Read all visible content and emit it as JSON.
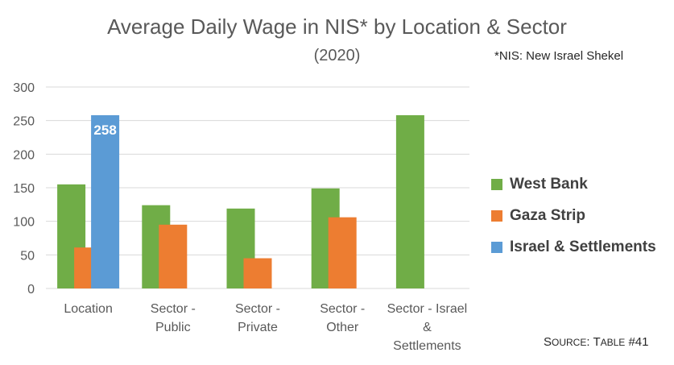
{
  "header": {
    "title": "Average Daily Wage in NIS* by Location & Sector",
    "subtitle": "(2020)",
    "note": "*NIS: New Israel Shekel"
  },
  "source": {
    "prefix_cap": "S",
    "prefix_rest": "OURCE",
    "colon": ": ",
    "table_cap": "T",
    "table_rest": "ABLE",
    "ref": " #41"
  },
  "colors": {
    "west_bank": "#70AD47",
    "gaza_strip": "#ED7D31",
    "israel_settlements": "#5B9BD5",
    "grid": "#D9D9D9",
    "axis_text": "#595959"
  },
  "chart_data": {
    "type": "bar",
    "title": "Average Daily Wage in NIS* by Location & Sector",
    "subtitle": "(2020)",
    "categories": [
      [
        "Location"
      ],
      [
        "Sector -",
        "Public"
      ],
      [
        "Sector -",
        "Private"
      ],
      [
        "Sector -",
        "Other"
      ],
      [
        "Sector - Israel",
        "&",
        "Settlements"
      ]
    ],
    "series": [
      {
        "name": "West Bank",
        "color": "#70AD47",
        "values": [
          155,
          124,
          119,
          149,
          258
        ]
      },
      {
        "name": "Gaza Strip",
        "color": "#ED7D31",
        "values": [
          61,
          95,
          45,
          106,
          null
        ]
      },
      {
        "name": "Israel & Settlements",
        "color": "#5B9BD5",
        "values": [
          258,
          null,
          null,
          null,
          null
        ]
      }
    ],
    "data_labels": [
      {
        "series": 2,
        "category": 0,
        "text": "258"
      }
    ],
    "ylim": [
      0,
      300
    ],
    "yticks": [
      "0",
      "50",
      "100",
      "150",
      "200",
      "250",
      "300"
    ],
    "grid": true,
    "legend_position": "right"
  }
}
